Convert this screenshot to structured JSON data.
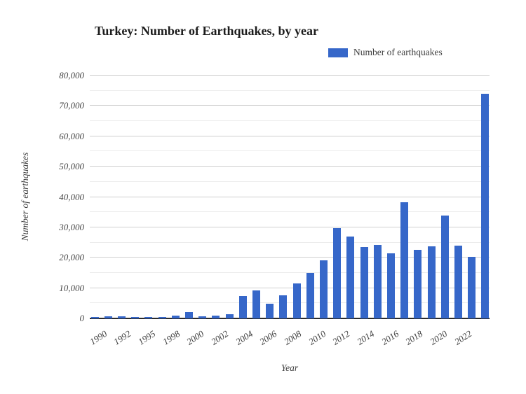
{
  "title": "Turkey: Number of Earthquakes, by year",
  "legend": {
    "items": [
      {
        "label": "Number of earthquakes",
        "color": "#3667c9"
      }
    ]
  },
  "y_axis": {
    "title": "Number of earthquakes",
    "tick_labels": [
      "0",
      "10,000",
      "20,000",
      "30,000",
      "40,000",
      "50,000",
      "60,000",
      "70,000",
      "80,000"
    ]
  },
  "x_axis": {
    "title": "Year",
    "tick_labels": [
      "1990",
      "1992",
      "1995",
      "1998",
      "2000",
      "2002",
      "2004",
      "2006",
      "2008",
      "2010",
      "2012",
      "2014",
      "2016",
      "2018",
      "2020",
      "2022"
    ]
  },
  "colors": {
    "bar": "#3667c9",
    "grid_major": "#cfcfcf",
    "grid_minor": "#ececec",
    "axis_line": "#2b2b2b",
    "title_text": "#1c1c1c",
    "tick_text": "#484848"
  },
  "chart_data": {
    "type": "bar",
    "title": "Turkey: Number of Earthquakes, by year",
    "xlabel": "Year",
    "ylabel": "Number of earthquakes",
    "ylim": [
      0,
      80000
    ],
    "y_tick_step": 10000,
    "y_minor_step": 5000,
    "grid": true,
    "legend_position": "top-right",
    "series_name": "Number of earthquakes",
    "x": [
      1990,
      1991,
      1992,
      1995,
      1998,
      1999,
      2000,
      2001,
      2002,
      2003,
      2004,
      2005,
      2006,
      2007,
      2008,
      2009,
      2010,
      2011,
      2012,
      2013,
      2014,
      2015,
      2016,
      2017,
      2018,
      2019,
      2020,
      2021,
      2022,
      2023
    ],
    "values": [
      500,
      600,
      650,
      500,
      550,
      350,
      950,
      2150,
      800,
      900,
      1450,
      7300,
      9200,
      4800,
      7500,
      11600,
      15000,
      19200,
      29800,
      27000,
      23500,
      24250,
      21500,
      38300,
      22700,
      23650,
      33900,
      23900,
      20200,
      74000
    ]
  }
}
